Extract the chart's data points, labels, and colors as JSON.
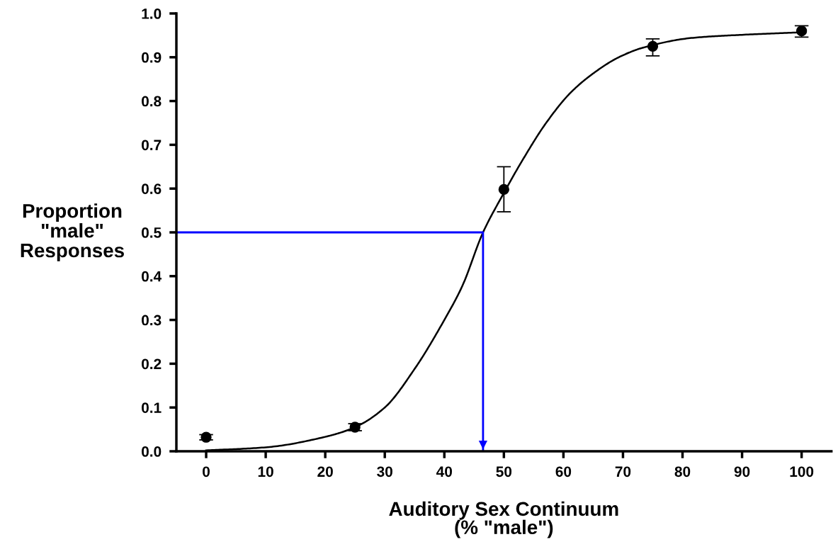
{
  "chart_data": {
    "type": "scatter",
    "xlabel": "Auditory Sex Continuum\n(% \"male\")",
    "ylabel": "Proportion\n\"male\"\nResponses",
    "xlim": [
      -5,
      105
    ],
    "ylim": [
      0,
      1
    ],
    "xticks": [
      0,
      10,
      20,
      30,
      40,
      50,
      60,
      70,
      80,
      90,
      100
    ],
    "yticks": [
      {
        "value": 0,
        "label": "0.0"
      },
      {
        "value": 0.1,
        "label": "0.1"
      },
      {
        "value": 0.2,
        "label": "0.2"
      },
      {
        "value": 0.3,
        "label": "0.3"
      },
      {
        "value": 0.4,
        "label": "0.4"
      },
      {
        "value": 0.5,
        "label": "0.5"
      },
      {
        "value": 0.6,
        "label": "0.6"
      },
      {
        "value": 0.7,
        "label": "0.7"
      },
      {
        "value": 0.8,
        "label": "0.8"
      },
      {
        "value": 0.9,
        "label": "0.9"
      },
      {
        "value": 1,
        "label": "1.0"
      }
    ],
    "grid": false,
    "legend": false,
    "marker": "circle",
    "series": [
      {
        "color": "#000000",
        "x": [
          0,
          25,
          50,
          75,
          100
        ],
        "values": [
          0.032,
          0.055,
          0.598,
          0.925,
          0.96
        ],
        "errors": [
          0.006,
          0.008,
          [
            0.547,
            0.65
          ],
          [
            0.903,
            0.942
          ],
          [
            0.946,
            0.972
          ]
        ]
      },
      {
        "type": "line",
        "color": "#000000",
        "marker": "none",
        "x": [
          0,
          10,
          20,
          25,
          30,
          35,
          40,
          43,
          46.5,
          50,
          53,
          57.2,
          61.2,
          65.3,
          69.3,
          73.4,
          81.5,
          89.6,
          100
        ],
        "values": [
          0.002,
          0.009,
          0.033,
          0.055,
          0.1,
          0.188,
          0.3,
          0.377,
          0.5,
          0.59,
          0.662,
          0.752,
          0.819,
          0.866,
          0.9,
          0.922,
          0.944,
          0.951,
          0.957
        ]
      },
      {
        "type": "line",
        "color": "#0000ff",
        "marker": "none",
        "x": [
          -5,
          46.5,
          46.5
        ],
        "values": [
          0.5,
          0.5,
          0
        ]
      }
    ]
  }
}
